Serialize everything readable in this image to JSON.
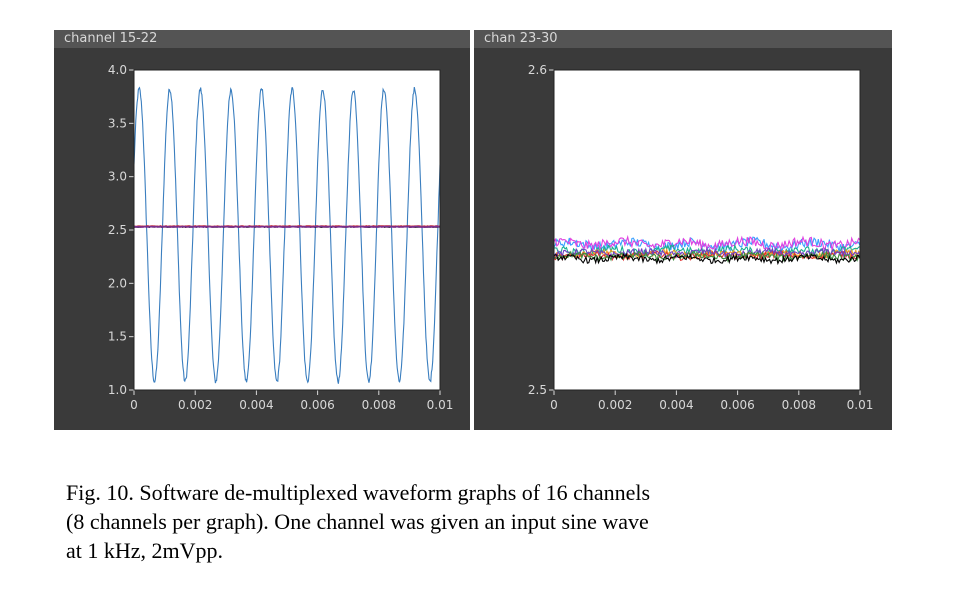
{
  "panels": {
    "left_title": "channel 15-22",
    "right_title": "chan 23-30"
  },
  "caption": {
    "line1": "Fig. 10.  Software de-multiplexed waveform graphs of 16 channels",
    "line2": "(8 channels per graph). One channel was given an input sine wave",
    "line3": "at 1 kHz, 2mVpp."
  },
  "colors": {
    "panel_bg": "#3a3a3a",
    "title_bar": "#545454",
    "tick_text": "#d8d8d8",
    "plot_bg": "#ffffff"
  },
  "chart_data": [
    {
      "type": "line",
      "title": "channel 15-22",
      "xlim": [
        0,
        0.01
      ],
      "ylim": [
        1.0,
        4.0
      ],
      "xticks": [
        "0",
        "0.002",
        "0.004",
        "0.006",
        "0.008",
        "0.01"
      ],
      "yticks": [
        "1.0",
        "1.5",
        "2.0",
        "2.5",
        "3.0",
        "3.5",
        "4.0"
      ],
      "series": [
        {
          "color": "#3a7ebf",
          "kind": "sine",
          "offset": 2.45,
          "amplitude": 1.37,
          "frequency_hz": 1000,
          "phase": 0.5
        },
        {
          "color": "#000000",
          "kind": "flat",
          "level": 2.53
        },
        {
          "color": "#c0283a",
          "kind": "flat",
          "level": 2.535
        },
        {
          "color": "#7b2d8e",
          "kind": "flat",
          "level": 2.53
        }
      ]
    },
    {
      "type": "line",
      "title": "chan 23-30",
      "xlim": [
        0,
        0.01
      ],
      "ylim": [
        2.5,
        2.6
      ],
      "xticks": [
        "0",
        "0.002",
        "0.004",
        "0.006",
        "0.008",
        "0.01"
      ],
      "yticks": [
        "2.5",
        "2.6"
      ],
      "series": [
        {
          "color": "#3aa0ff",
          "kind": "noise",
          "level": 2.5455,
          "spread": 0.0015
        },
        {
          "color": "#e040e0",
          "kind": "noise",
          "level": 2.5458,
          "spread": 0.0015
        },
        {
          "color": "#18b090",
          "kind": "noise",
          "level": 2.5435,
          "spread": 0.0012
        },
        {
          "color": "#f0a020",
          "kind": "noise",
          "level": 2.5425,
          "spread": 0.001
        },
        {
          "color": "#e03030",
          "kind": "noise",
          "level": 2.542,
          "spread": 0.001
        },
        {
          "color": "#7040c0",
          "kind": "noise",
          "level": 2.5428,
          "spread": 0.001
        },
        {
          "color": "#3c8c3c",
          "kind": "noise",
          "level": 2.5418,
          "spread": 0.001
        },
        {
          "color": "#000000",
          "kind": "noise",
          "level": 2.541,
          "spread": 0.001
        }
      ]
    }
  ]
}
